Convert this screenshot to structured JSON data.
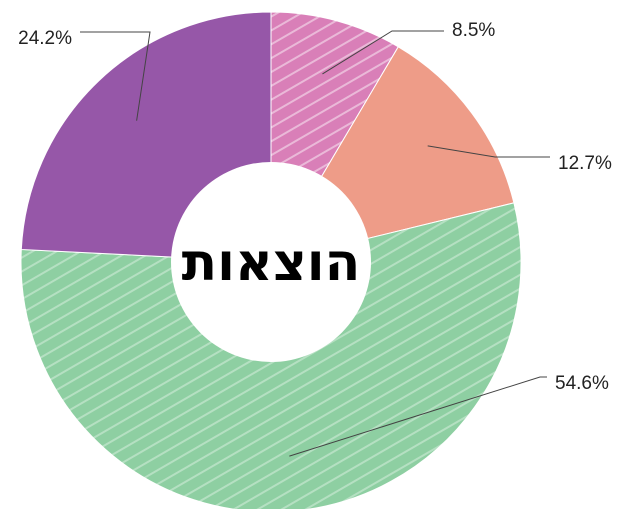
{
  "chart_data": {
    "type": "pie",
    "variant": "donut",
    "title": "הוצאות",
    "slices": [
      {
        "label": "8.5%",
        "value": 8.5,
        "color": "#d97fb8",
        "pattern": "diagonal-hatch"
      },
      {
        "label": "12.7%",
        "value": 12.7,
        "color": "#ee9c88",
        "pattern": "none"
      },
      {
        "label": "54.6%",
        "value": 54.6,
        "color": "#8ecfa2",
        "pattern": "diagonal-hatch"
      },
      {
        "label": "24.2%",
        "value": 24.2,
        "color": "#9657a8",
        "pattern": "none"
      }
    ],
    "start_angle": "12 o'clock",
    "direction": "clockwise",
    "legend": "none"
  }
}
